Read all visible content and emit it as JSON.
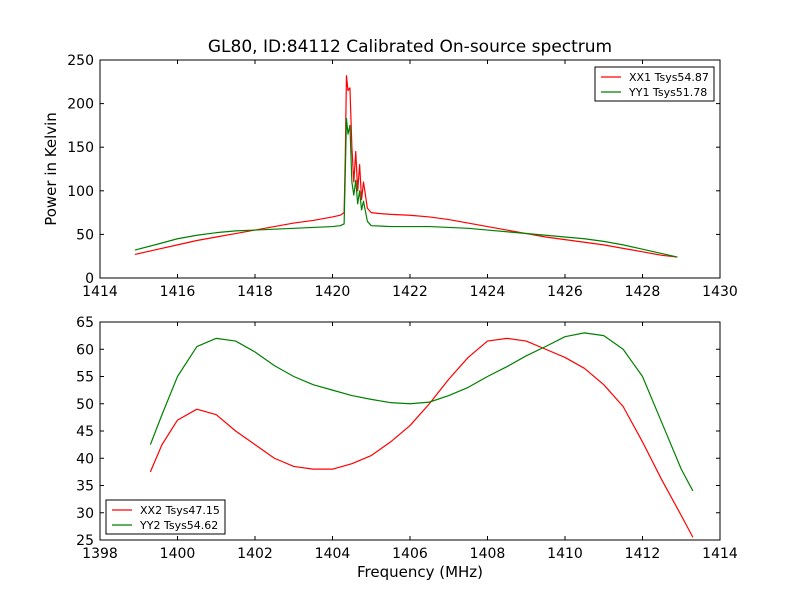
{
  "figure_title": "GL80, ID:84112 Calibrated On-source spectrum",
  "chart_data": [
    {
      "type": "line",
      "title": "GL80, ID:84112 Calibrated On-source spectrum",
      "xlabel": "",
      "ylabel": "Power in Kelvin",
      "xlim": [
        1414,
        1430
      ],
      "ylim": [
        0,
        250
      ],
      "xticks": [
        "1414",
        "1416",
        "1418",
        "1420",
        "1422",
        "1424",
        "1426",
        "1428",
        "1430"
      ],
      "yticks": [
        "0",
        "50",
        "100",
        "150",
        "200",
        "250"
      ],
      "grid": false,
      "legend_position": "top-right",
      "series": [
        {
          "name": "XX1 Tsys54.87",
          "color": "#ff0000",
          "x": [
            1414.9,
            1415.5,
            1416,
            1416.5,
            1417,
            1417.5,
            1418,
            1418.5,
            1419,
            1419.5,
            1420,
            1420.2,
            1420.3,
            1420.33,
            1420.36,
            1420.4,
            1420.45,
            1420.5,
            1420.55,
            1420.6,
            1420.65,
            1420.7,
            1420.75,
            1420.8,
            1420.9,
            1421,
            1421.2,
            1421.5,
            1422,
            1422.5,
            1423,
            1423.5,
            1424,
            1424.5,
            1425,
            1425.5,
            1426,
            1426.5,
            1427,
            1427.5,
            1428,
            1428.5,
            1428.9
          ],
          "y": [
            27,
            33,
            38,
            43,
            47,
            51,
            55,
            59,
            63,
            66,
            70,
            72,
            75,
            140,
            232,
            215,
            218,
            150,
            110,
            145,
            100,
            130,
            90,
            110,
            80,
            75,
            74,
            73,
            72,
            70,
            67,
            63,
            59,
            55,
            51,
            47,
            44,
            41,
            38,
            34,
            30,
            26,
            24
          ]
        },
        {
          "name": "YY1 Tsys51.78",
          "color": "#008000",
          "x": [
            1414.9,
            1415.5,
            1416,
            1416.5,
            1417,
            1417.5,
            1418,
            1418.5,
            1419,
            1419.5,
            1420,
            1420.2,
            1420.3,
            1420.33,
            1420.36,
            1420.4,
            1420.45,
            1420.5,
            1420.55,
            1420.6,
            1420.65,
            1420.7,
            1420.75,
            1420.8,
            1420.9,
            1421,
            1421.5,
            1422,
            1422.5,
            1423,
            1423.5,
            1424,
            1424.5,
            1425,
            1425.5,
            1426,
            1426.5,
            1427,
            1427.5,
            1428,
            1428.5,
            1428.9
          ],
          "y": [
            32,
            39,
            45,
            49,
            52,
            54,
            55,
            56,
            57,
            58,
            59,
            60,
            62,
            120,
            183,
            165,
            175,
            110,
            95,
            112,
            85,
            100,
            78,
            88,
            65,
            60,
            59,
            59,
            59,
            58,
            57,
            55,
            53,
            51,
            49,
            47,
            45,
            42,
            38,
            33,
            28,
            24
          ]
        }
      ]
    },
    {
      "type": "line",
      "title": "",
      "xlabel": "Frequency (MHz)",
      "ylabel": "",
      "xlim": [
        1398,
        1414
      ],
      "ylim": [
        25,
        65
      ],
      "xticks": [
        "1398",
        "1400",
        "1402",
        "1404",
        "1406",
        "1408",
        "1410",
        "1412",
        "1414"
      ],
      "yticks": [
        "25",
        "30",
        "35",
        "40",
        "45",
        "50",
        "55",
        "60",
        "65"
      ],
      "grid": false,
      "legend_position": "bottom-left",
      "series": [
        {
          "name": "XX2 Tsys47.15",
          "color": "#ff0000",
          "x": [
            1399.3,
            1399.6,
            1400,
            1400.5,
            1401,
            1401.5,
            1402,
            1402.5,
            1403,
            1403.5,
            1404,
            1404.5,
            1405,
            1405.5,
            1406,
            1406.5,
            1407,
            1407.5,
            1408,
            1408.5,
            1409,
            1409.5,
            1410,
            1410.5,
            1411,
            1411.5,
            1412,
            1412.5,
            1413,
            1413.3
          ],
          "y": [
            37.5,
            42.5,
            47,
            49,
            48,
            45,
            42.5,
            40,
            38.5,
            38,
            38,
            39,
            40.5,
            43,
            46,
            50,
            54.5,
            58.5,
            61.5,
            62,
            61.5,
            60,
            58.5,
            56.5,
            53.5,
            49.5,
            43,
            36,
            29.5,
            25.5
          ]
        },
        {
          "name": "YY2 Tsys54.62",
          "color": "#008000",
          "x": [
            1399.3,
            1399.6,
            1400,
            1400.5,
            1401,
            1401.5,
            1402,
            1402.5,
            1403,
            1403.5,
            1404,
            1404.5,
            1405,
            1405.5,
            1406,
            1406.5,
            1407,
            1407.5,
            1408,
            1408.5,
            1409,
            1409.5,
            1410,
            1410.5,
            1411,
            1411.5,
            1412,
            1412.5,
            1413,
            1413.3
          ],
          "y": [
            42.5,
            48,
            55,
            60.5,
            62,
            61.5,
            59.5,
            57,
            55,
            53.5,
            52.5,
            51.5,
            50.8,
            50.2,
            50,
            50.3,
            51.5,
            53,
            55,
            56.8,
            58.8,
            60.5,
            62.3,
            63,
            62.5,
            60,
            55,
            46.5,
            38,
            34
          ]
        }
      ]
    }
  ]
}
